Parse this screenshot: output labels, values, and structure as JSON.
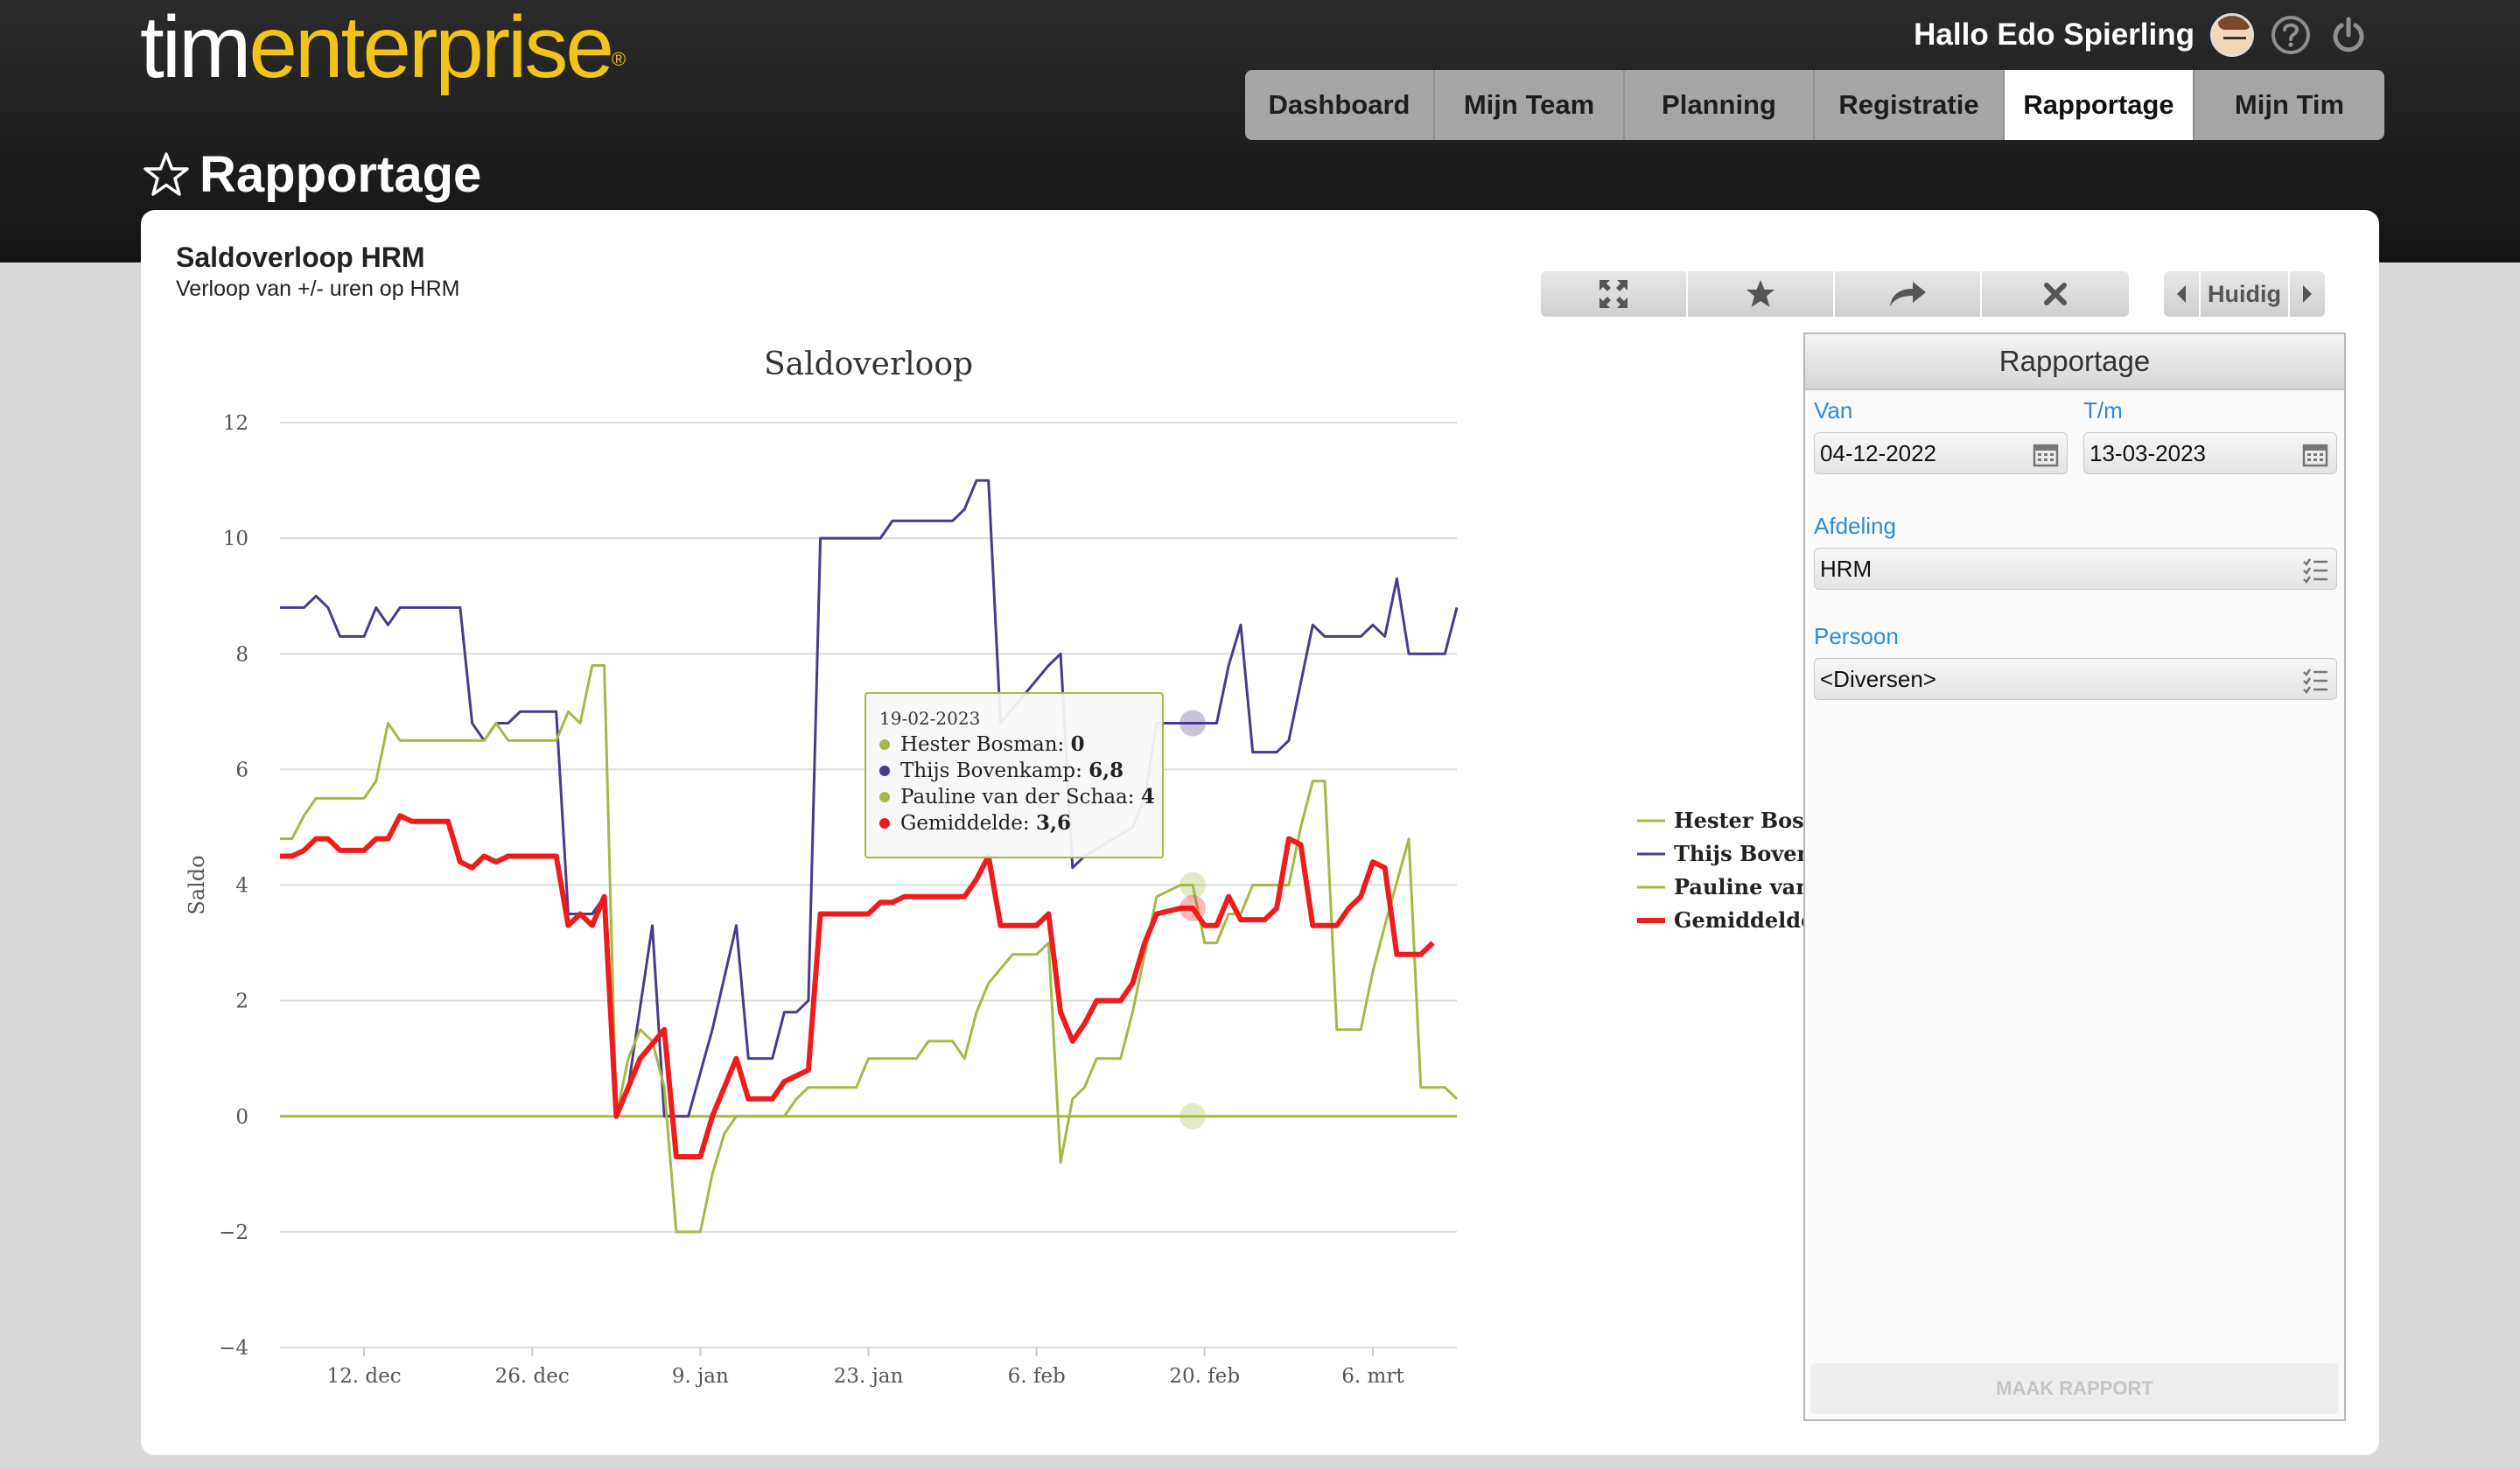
{
  "brand": {
    "part1": "tim",
    "part2": "enterprise",
    "registered": "®"
  },
  "header": {
    "greeting": "Hallo Edo Spierling"
  },
  "nav": {
    "tabs": [
      "Dashboard",
      "Mijn Team",
      "Planning",
      "Registratie",
      "Rapportage",
      "Mijn Tim"
    ],
    "active": "Rapportage"
  },
  "page": {
    "title": "Rapportage"
  },
  "report": {
    "title": "Saldoverloop HRM",
    "subtitle": "Verloop van +/- uren op HRM"
  },
  "period": {
    "current_label": "Huidig"
  },
  "panel": {
    "title": "Rapportage",
    "van_label": "Van",
    "van_value": "04-12-2022",
    "tm_label": "T/m",
    "tm_value": "13-03-2023",
    "afdeling_label": "Afdeling",
    "afdeling_value": "HRM",
    "persoon_label": "Persoon",
    "persoon_value": "<Diversen>",
    "maak_label": "MAAK RAPPORT"
  },
  "colors": {
    "accent": "#f2c318",
    "hester": "#a3ba47",
    "thijs": "#4b3a8c",
    "pauline": "#a3ba47",
    "gemiddelde": "#ee1c1c",
    "link": "#2e8bd6"
  },
  "tooltip": {
    "date": "19-02-2023",
    "rows": [
      {
        "name": "Hester Bosman",
        "value": "0",
        "color": "#a3ba47"
      },
      {
        "name": "Thijs Bovenkamp",
        "value": "6,8",
        "color": "#4b3a8c"
      },
      {
        "name": "Pauline van der Schaa",
        "value": "4",
        "color": "#a3ba47"
      },
      {
        "name": "Gemiddelde",
        "value": "3,6",
        "color": "#ee1c1c"
      }
    ]
  },
  "chart_data": {
    "type": "line",
    "title": "Saldoverloop",
    "ylabel": "Saldo",
    "ylim": [
      -4,
      12
    ],
    "yticks": [
      -4,
      -2,
      0,
      2,
      4,
      6,
      8,
      10,
      12
    ],
    "xlim": [
      "2022-12-05",
      "2023-03-13"
    ],
    "xticks": [
      {
        "date": "2022-12-12",
        "label": "12. dec"
      },
      {
        "date": "2022-12-26",
        "label": "26. dec"
      },
      {
        "date": "2023-01-09",
        "label": "9. jan"
      },
      {
        "date": "2023-01-23",
        "label": "23. jan"
      },
      {
        "date": "2023-02-06",
        "label": "6. feb"
      },
      {
        "date": "2023-02-20",
        "label": "20. feb"
      },
      {
        "date": "2023-03-06",
        "label": "6. mrt"
      }
    ],
    "legend": "right",
    "series": [
      {
        "name": "Hester Bosman",
        "color": "#a3ba47",
        "width": 2,
        "points": [
          [
            "2022-12-05",
            0
          ],
          [
            "2023-03-13",
            0
          ]
        ]
      },
      {
        "name": "Thijs Bovenkamp",
        "color": "#4b3a8c",
        "width": 2,
        "points": [
          [
            "2022-12-05",
            8.8
          ],
          [
            "2022-12-07",
            8.8
          ],
          [
            "2022-12-08",
            9
          ],
          [
            "2022-12-09",
            8.8
          ],
          [
            "2022-12-10",
            8.3
          ],
          [
            "2022-12-12",
            8.3
          ],
          [
            "2022-12-13",
            8.8
          ],
          [
            "2022-12-14",
            8.5
          ],
          [
            "2022-12-15",
            8.8
          ],
          [
            "2022-12-20",
            8.8
          ],
          [
            "2022-12-21",
            6.8
          ],
          [
            "2022-12-22",
            6.5
          ],
          [
            "2022-12-23",
            6.8
          ],
          [
            "2022-12-24",
            6.8
          ],
          [
            "2022-12-25",
            7
          ],
          [
            "2022-12-28",
            7
          ],
          [
            "2022-12-29",
            3.5
          ],
          [
            "2022-12-31",
            3.5
          ],
          [
            "2023-01-01",
            3.8
          ],
          [
            "2023-01-02",
            0
          ],
          [
            "2023-01-03",
            0.5
          ],
          [
            "2023-01-05",
            3.3
          ],
          [
            "2023-01-06",
            0
          ],
          [
            "2023-01-08",
            0
          ],
          [
            "2023-01-10",
            1.5
          ],
          [
            "2023-01-12",
            3.3
          ],
          [
            "2023-01-13",
            1
          ],
          [
            "2023-01-15",
            1
          ],
          [
            "2023-01-16",
            1.8
          ],
          [
            "2023-01-17",
            1.8
          ],
          [
            "2023-01-18",
            2
          ],
          [
            "2023-01-19",
            10
          ],
          [
            "2023-01-24",
            10
          ],
          [
            "2023-01-25",
            10.3
          ],
          [
            "2023-01-30",
            10.3
          ],
          [
            "2023-01-31",
            10.5
          ],
          [
            "2023-02-01",
            11
          ],
          [
            "2023-02-02",
            11
          ],
          [
            "2023-02-03",
            6.8
          ],
          [
            "2023-02-07",
            7.8
          ],
          [
            "2023-02-08",
            8
          ],
          [
            "2023-02-09",
            4.3
          ],
          [
            "2023-02-10",
            4.5
          ],
          [
            "2023-02-14",
            5
          ],
          [
            "2023-02-15",
            5.5
          ],
          [
            "2023-02-16",
            6.8
          ],
          [
            "2023-02-21",
            6.8
          ],
          [
            "2023-02-22",
            7.8
          ],
          [
            "2023-02-23",
            8.5
          ],
          [
            "2023-02-24",
            6.3
          ],
          [
            "2023-02-26",
            6.3
          ],
          [
            "2023-02-27",
            6.5
          ],
          [
            "2023-02-28",
            7.5
          ],
          [
            "2023-03-01",
            8.5
          ],
          [
            "2023-03-02",
            8.3
          ],
          [
            "2023-03-05",
            8.3
          ],
          [
            "2023-03-06",
            8.5
          ],
          [
            "2023-03-07",
            8.3
          ],
          [
            "2023-03-08",
            9.3
          ],
          [
            "2023-03-09",
            8
          ],
          [
            "2023-03-12",
            8
          ],
          [
            "2023-03-13",
            8.8
          ]
        ]
      },
      {
        "name": "Pauline van der Schaa",
        "color": "#a3ba47",
        "width": 2,
        "points": [
          [
            "2022-12-05",
            4.8
          ],
          [
            "2022-12-06",
            4.8
          ],
          [
            "2022-12-07",
            5.2
          ],
          [
            "2022-12-08",
            5.5
          ],
          [
            "2022-12-12",
            5.5
          ],
          [
            "2022-12-13",
            5.8
          ],
          [
            "2022-12-14",
            6.8
          ],
          [
            "2022-12-15",
            6.5
          ],
          [
            "2022-12-22",
            6.5
          ],
          [
            "2022-12-23",
            6.8
          ],
          [
            "2022-12-24",
            6.5
          ],
          [
            "2022-12-28",
            6.5
          ],
          [
            "2022-12-29",
            7
          ],
          [
            "2022-12-30",
            6.8
          ],
          [
            "2022-12-31",
            7.8
          ],
          [
            "2023-01-01",
            7.8
          ],
          [
            "2023-01-02",
            0
          ],
          [
            "2023-01-03",
            1
          ],
          [
            "2023-01-04",
            1.5
          ],
          [
            "2023-01-05",
            1.3
          ],
          [
            "2023-01-06",
            0.5
          ],
          [
            "2023-01-07",
            -2
          ],
          [
            "2023-01-09",
            -2
          ],
          [
            "2023-01-10",
            -1
          ],
          [
            "2023-01-11",
            -0.3
          ],
          [
            "2023-01-12",
            0
          ],
          [
            "2023-01-16",
            0
          ],
          [
            "2023-01-17",
            0.3
          ],
          [
            "2023-01-18",
            0.5
          ],
          [
            "2023-01-22",
            0.5
          ],
          [
            "2023-01-23",
            1
          ],
          [
            "2023-01-27",
            1
          ],
          [
            "2023-01-28",
            1.3
          ],
          [
            "2023-01-30",
            1.3
          ],
          [
            "2023-01-31",
            1
          ],
          [
            "2023-02-01",
            1.8
          ],
          [
            "2023-02-02",
            2.3
          ],
          [
            "2023-02-04",
            2.8
          ],
          [
            "2023-02-06",
            2.8
          ],
          [
            "2023-02-07",
            3
          ],
          [
            "2023-02-08",
            -0.8
          ],
          [
            "2023-02-09",
            0.3
          ],
          [
            "2023-02-10",
            0.5
          ],
          [
            "2023-02-11",
            1
          ],
          [
            "2023-02-13",
            1
          ],
          [
            "2023-02-14",
            1.8
          ],
          [
            "2023-02-15",
            2.8
          ],
          [
            "2023-02-16",
            3.8
          ],
          [
            "2023-02-18",
            4
          ],
          [
            "2023-02-19",
            4
          ],
          [
            "2023-02-20",
            3
          ],
          [
            "2023-02-21",
            3
          ],
          [
            "2023-02-22",
            3.5
          ],
          [
            "2023-02-23",
            3.5
          ],
          [
            "2023-02-24",
            4
          ],
          [
            "2023-02-27",
            4
          ],
          [
            "2023-02-28",
            5
          ],
          [
            "2023-03-01",
            5.8
          ],
          [
            "2023-03-02",
            5.8
          ],
          [
            "2023-03-03",
            1.5
          ],
          [
            "2023-03-05",
            1.5
          ],
          [
            "2023-03-06",
            2.5
          ],
          [
            "2023-03-07",
            3.3
          ],
          [
            "2023-03-09",
            4.8
          ],
          [
            "2023-03-10",
            0.5
          ],
          [
            "2023-03-12",
            0.5
          ],
          [
            "2023-03-13",
            0.3
          ]
        ]
      },
      {
        "name": "Gemiddelde",
        "color": "#ee1c1c",
        "width": 4,
        "points": [
          [
            "2022-12-05",
            4.5
          ],
          [
            "2022-12-06",
            4.5
          ],
          [
            "2022-12-07",
            4.6
          ],
          [
            "2022-12-08",
            4.8
          ],
          [
            "2022-12-09",
            4.8
          ],
          [
            "2022-12-10",
            4.6
          ],
          [
            "2022-12-12",
            4.6
          ],
          [
            "2022-12-13",
            4.8
          ],
          [
            "2022-12-14",
            4.8
          ],
          [
            "2022-12-15",
            5.2
          ],
          [
            "2022-12-16",
            5.1
          ],
          [
            "2022-12-19",
            5.1
          ],
          [
            "2022-12-20",
            4.4
          ],
          [
            "2022-12-21",
            4.3
          ],
          [
            "2022-12-22",
            4.5
          ],
          [
            "2022-12-23",
            4.4
          ],
          [
            "2022-12-24",
            4.5
          ],
          [
            "2022-12-28",
            4.5
          ],
          [
            "2022-12-29",
            3.3
          ],
          [
            "2022-12-30",
            3.5
          ],
          [
            "2022-12-31",
            3.3
          ],
          [
            "2023-01-01",
            3.8
          ],
          [
            "2023-01-02",
            0
          ],
          [
            "2023-01-03",
            0.5
          ],
          [
            "2023-01-04",
            1
          ],
          [
            "2023-01-06",
            1.5
          ],
          [
            "2023-01-07",
            -0.7
          ],
          [
            "2023-01-09",
            -0.7
          ],
          [
            "2023-01-10",
            0
          ],
          [
            "2023-01-11",
            0.5
          ],
          [
            "2023-01-12",
            1
          ],
          [
            "2023-01-13",
            0.3
          ],
          [
            "2023-01-15",
            0.3
          ],
          [
            "2023-01-16",
            0.6
          ],
          [
            "2023-01-17",
            0.7
          ],
          [
            "2023-01-18",
            0.8
          ],
          [
            "2023-01-19",
            3.5
          ],
          [
            "2023-01-23",
            3.5
          ],
          [
            "2023-01-24",
            3.7
          ],
          [
            "2023-01-25",
            3.7
          ],
          [
            "2023-01-26",
            3.8
          ],
          [
            "2023-01-31",
            3.8
          ],
          [
            "2023-02-01",
            4.1
          ],
          [
            "2023-02-02",
            4.5
          ],
          [
            "2023-02-03",
            3.3
          ],
          [
            "2023-02-06",
            3.3
          ],
          [
            "2023-02-07",
            3.5
          ],
          [
            "2023-02-08",
            1.8
          ],
          [
            "2023-02-09",
            1.3
          ],
          [
            "2023-02-10",
            1.6
          ],
          [
            "2023-02-11",
            2
          ],
          [
            "2023-02-13",
            2
          ],
          [
            "2023-02-14",
            2.3
          ],
          [
            "2023-02-15",
            3
          ],
          [
            "2023-02-16",
            3.5
          ],
          [
            "2023-02-18",
            3.6
          ],
          [
            "2023-02-19",
            3.6
          ],
          [
            "2023-02-20",
            3.3
          ],
          [
            "2023-02-21",
            3.3
          ],
          [
            "2023-02-22",
            3.8
          ],
          [
            "2023-02-23",
            3.4
          ],
          [
            "2023-02-25",
            3.4
          ],
          [
            "2023-02-26",
            3.6
          ],
          [
            "2023-02-27",
            4.8
          ],
          [
            "2023-02-28",
            4.7
          ],
          [
            "2023-03-01",
            3.3
          ],
          [
            "2023-03-03",
            3.3
          ],
          [
            "2023-03-04",
            3.6
          ],
          [
            "2023-03-05",
            3.8
          ],
          [
            "2023-03-06",
            4.4
          ],
          [
            "2023-03-07",
            4.3
          ],
          [
            "2023-03-08",
            2.8
          ],
          [
            "2023-03-10",
            2.8
          ],
          [
            "2023-03-11",
            3
          ]
        ]
      }
    ]
  }
}
